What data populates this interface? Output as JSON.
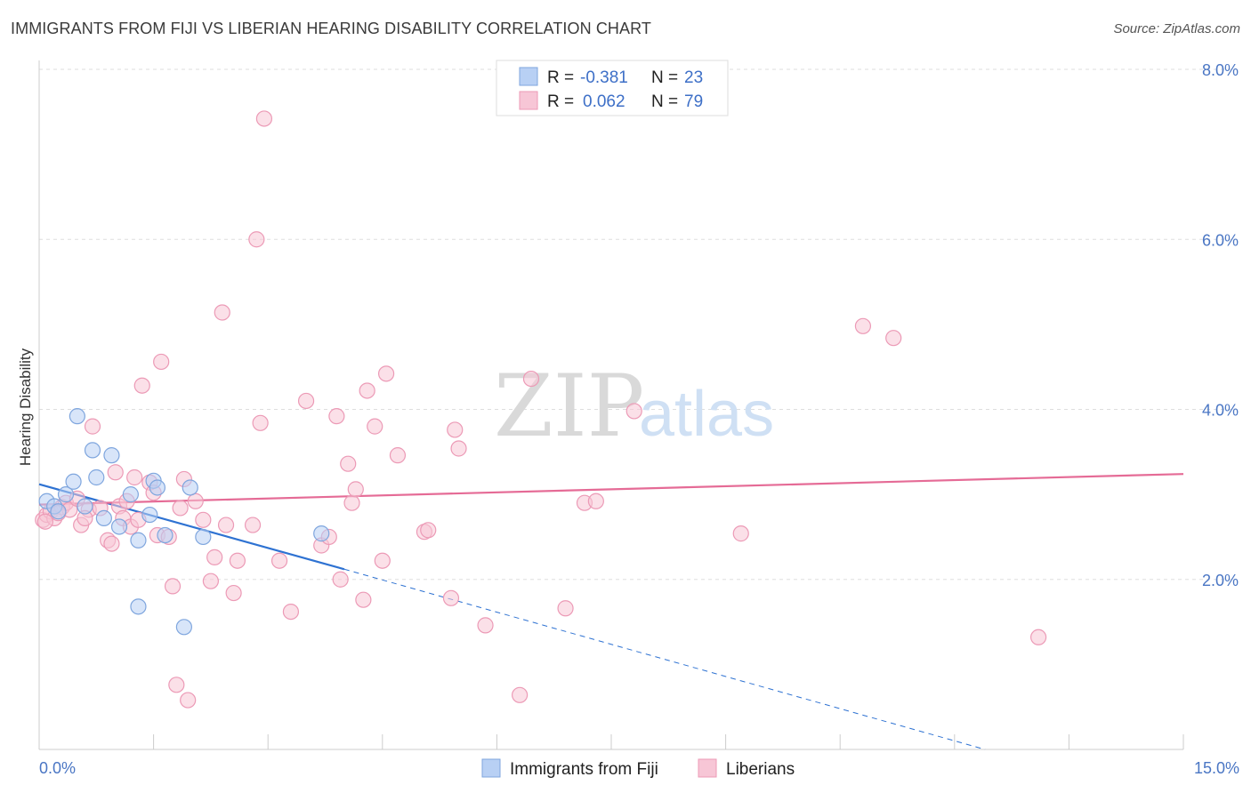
{
  "title": "IMMIGRANTS FROM FIJI VS LIBERIAN HEARING DISABILITY CORRELATION CHART",
  "source": "Source: ZipAtlas.com",
  "watermark": {
    "zip": "ZIP",
    "atlas": "atlas"
  },
  "colors": {
    "fiji_fill": "#b8d0f4",
    "fiji_stroke": "#7fa6de",
    "fiji_line": "#2e72d2",
    "liberian_fill": "#f7c6d6",
    "liberian_stroke": "#ec9ab6",
    "liberian_line": "#e56b96",
    "tick_text": "#4a76c4",
    "grid": "#dddddd"
  },
  "legend": {
    "rows": [
      {
        "r_label": "R =",
        "r_value": "-0.381",
        "n_label": "N =",
        "n_value": "23"
      },
      {
        "r_label": "R =",
        "r_value": "0.062",
        "n_label": "N =",
        "n_value": "79"
      }
    ]
  },
  "bottom_legend": [
    "Immigrants from Fiji",
    "Liberians"
  ],
  "chart_data": {
    "type": "scatter",
    "title": "IMMIGRANTS FROM FIJI VS LIBERIAN HEARING DISABILITY CORRELATION CHART",
    "xlabel": "",
    "ylabel": "Hearing Disability",
    "xlim": [
      0,
      15
    ],
    "ylim": [
      0,
      8
    ],
    "x_tick_labels": [
      "0.0%",
      "15.0%"
    ],
    "y_ticks": [
      2,
      4,
      6,
      8
    ],
    "y_tick_labels": [
      "2.0%",
      "4.0%",
      "6.0%",
      "8.0%"
    ],
    "grid": true,
    "legend_position": "top-center",
    "series": [
      {
        "name": "Immigrants from Fiji",
        "r": -0.381,
        "n": 23,
        "trend": {
          "x0": 0.0,
          "y0": 3.12,
          "x1": 4.0,
          "y1": 2.12,
          "dashed_to_x": 12.4,
          "dashed_to_y": 0.0
        },
        "points": [
          [
            0.1,
            2.92
          ],
          [
            0.2,
            2.86
          ],
          [
            0.25,
            2.8
          ],
          [
            0.35,
            3.0
          ],
          [
            0.45,
            3.15
          ],
          [
            0.5,
            3.92
          ],
          [
            0.6,
            2.86
          ],
          [
            0.7,
            3.52
          ],
          [
            0.75,
            3.2
          ],
          [
            0.85,
            2.72
          ],
          [
            0.95,
            3.46
          ],
          [
            1.05,
            2.62
          ],
          [
            1.2,
            3.0
          ],
          [
            1.3,
            2.46
          ],
          [
            1.45,
            2.76
          ],
          [
            1.5,
            3.16
          ],
          [
            1.55,
            3.08
          ],
          [
            1.65,
            2.52
          ],
          [
            1.3,
            1.68
          ],
          [
            1.9,
            1.44
          ],
          [
            1.98,
            3.08
          ],
          [
            2.15,
            2.5
          ],
          [
            3.7,
            2.54
          ]
        ]
      },
      {
        "name": "Liberians",
        "r": 0.062,
        "n": 79,
        "trend": {
          "x0": 0.0,
          "y0": 2.88,
          "x1": 15.0,
          "y1": 3.24
        },
        "points": [
          [
            0.05,
            2.7
          ],
          [
            0.1,
            2.76
          ],
          [
            0.15,
            2.8
          ],
          [
            0.2,
            2.72
          ],
          [
            0.3,
            2.85
          ],
          [
            0.35,
            2.9
          ],
          [
            0.4,
            2.82
          ],
          [
            0.5,
            2.95
          ],
          [
            0.55,
            2.64
          ],
          [
            0.65,
            2.82
          ],
          [
            0.7,
            3.8
          ],
          [
            0.8,
            2.84
          ],
          [
            0.9,
            2.46
          ],
          [
            0.95,
            2.42
          ],
          [
            1.0,
            3.26
          ],
          [
            1.05,
            2.86
          ],
          [
            1.1,
            2.72
          ],
          [
            1.2,
            2.62
          ],
          [
            1.25,
            3.2
          ],
          [
            1.3,
            2.7
          ],
          [
            1.35,
            4.28
          ],
          [
            1.45,
            3.14
          ],
          [
            1.5,
            3.02
          ],
          [
            1.55,
            2.52
          ],
          [
            1.6,
            4.56
          ],
          [
            1.7,
            2.5
          ],
          [
            1.75,
            1.92
          ],
          [
            1.8,
            0.76
          ],
          [
            1.85,
            2.84
          ],
          [
            1.9,
            3.18
          ],
          [
            1.95,
            0.58
          ],
          [
            2.05,
            2.92
          ],
          [
            2.15,
            2.7
          ],
          [
            2.25,
            1.98
          ],
          [
            2.3,
            2.26
          ],
          [
            2.4,
            5.14
          ],
          [
            2.45,
            2.64
          ],
          [
            2.55,
            1.84
          ],
          [
            2.6,
            2.22
          ],
          [
            2.8,
            2.64
          ],
          [
            2.85,
            6.0
          ],
          [
            2.9,
            3.84
          ],
          [
            2.95,
            7.42
          ],
          [
            3.15,
            2.22
          ],
          [
            3.3,
            1.62
          ],
          [
            3.5,
            4.1
          ],
          [
            3.7,
            2.4
          ],
          [
            3.8,
            2.5
          ],
          [
            3.9,
            3.92
          ],
          [
            3.95,
            2.0
          ],
          [
            4.05,
            3.36
          ],
          [
            4.1,
            2.9
          ],
          [
            4.15,
            3.06
          ],
          [
            4.25,
            1.76
          ],
          [
            4.3,
            4.22
          ],
          [
            4.4,
            3.8
          ],
          [
            4.5,
            2.22
          ],
          [
            4.55,
            4.42
          ],
          [
            4.7,
            3.46
          ],
          [
            5.05,
            2.56
          ],
          [
            5.1,
            2.58
          ],
          [
            5.4,
            1.78
          ],
          [
            5.45,
            3.76
          ],
          [
            5.5,
            3.54
          ],
          [
            5.85,
            1.46
          ],
          [
            6.3,
            0.64
          ],
          [
            6.45,
            4.36
          ],
          [
            6.9,
            1.66
          ],
          [
            7.15,
            2.9
          ],
          [
            7.3,
            2.92
          ],
          [
            7.8,
            3.98
          ],
          [
            9.2,
            2.54
          ],
          [
            10.8,
            4.98
          ],
          [
            11.2,
            4.84
          ],
          [
            13.1,
            1.32
          ],
          [
            0.08,
            2.68
          ],
          [
            0.25,
            2.78
          ],
          [
            0.6,
            2.72
          ],
          [
            1.15,
            2.92
          ]
        ]
      }
    ]
  }
}
